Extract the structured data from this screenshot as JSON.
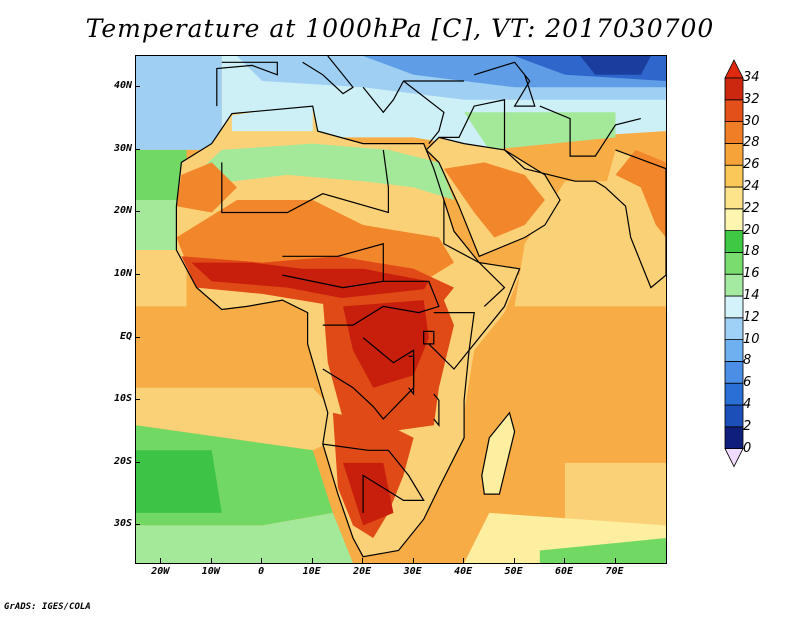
{
  "title": "Temperature at 1000hPa [C], VT: 2017030700",
  "credit": "GrADS: IGES/COLA",
  "map": {
    "lon_range": [
      -25,
      80
    ],
    "lat_range": [
      -36,
      45
    ],
    "lat_ticks": [
      "40N",
      "30N",
      "20N",
      "10N",
      "EQ",
      "10S",
      "20S",
      "30S"
    ],
    "lat_values": [
      40,
      30,
      20,
      10,
      0,
      -10,
      -20,
      -30
    ],
    "lon_ticks": [
      "20W",
      "10W",
      "0",
      "10E",
      "20E",
      "30E",
      "40E",
      "50E",
      "60E",
      "70E"
    ],
    "lon_values": [
      -20,
      -10,
      0,
      10,
      20,
      30,
      40,
      50,
      60,
      70
    ]
  },
  "colorbar": {
    "labels": [
      "34",
      "32",
      "30",
      "28",
      "26",
      "24",
      "22",
      "20",
      "18",
      "16",
      "14",
      "12",
      "10",
      "8",
      "6",
      "4",
      "2",
      "0"
    ],
    "colors": [
      "#f0dcff",
      "#0f1e7a",
      "#1c4fb8",
      "#2a6fd6",
      "#4a8ee6",
      "#6fb0f0",
      "#9fd0f6",
      "#d4f2fa",
      "#a4eaa0",
      "#78dc6f",
      "#3ec844",
      "#fdf5b0",
      "#fde48a",
      "#f9c858",
      "#f6a43a",
      "#ef7e26",
      "#e4501a",
      "#cc2810",
      "#e02a10"
    ]
  },
  "colors": {
    "hot_dark": "#c81e0c",
    "hot": "#e04a16",
    "warm": "#f2862a",
    "mid": "#f7ac45",
    "mild": "#fbd178",
    "light": "#fdeea0",
    "green_dark": "#3ec444",
    "green": "#72d864",
    "green_light": "#a4e89a",
    "cyan": "#cdf0f6",
    "sky": "#9fd0f4",
    "blue": "#5f9ee6",
    "blue_dark": "#2e66cc",
    "navy": "#1b3d9e"
  }
}
